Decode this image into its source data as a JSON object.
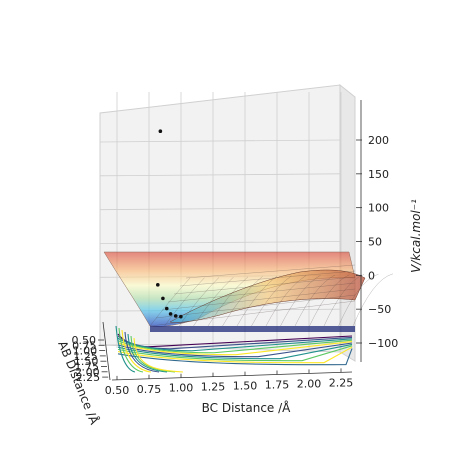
{
  "chart_data": {
    "type": "surface3d",
    "title": "",
    "xlabel": "BC Distance /Å",
    "ylabel": "AB Distance /Å",
    "zlabel": "V/kcal.mol⁻¹",
    "x_ticks": [
      "0.50",
      "0.75",
      "1.00",
      "1.25",
      "1.50",
      "1.75",
      "2.00",
      "2.25"
    ],
    "y_ticks": [
      "0.50",
      "0.75",
      "1.00",
      "1.25",
      "1.50",
      "1.75",
      "2.00",
      "2.25"
    ],
    "z_ticks": [
      "200",
      "150",
      "100",
      "50",
      "0",
      "−50",
      "−100"
    ],
    "x_tick_values": [
      0.5,
      0.75,
      1.0,
      1.25,
      1.5,
      1.75,
      2.0,
      2.25
    ],
    "z_tick_values": [
      200,
      150,
      100,
      50,
      0,
      -50,
      -100
    ],
    "xlim": [
      0.35,
      2.4
    ],
    "zlim": [
      -110,
      230
    ],
    "trajectory_points": [
      {
        "x": 0.62,
        "z": 210
      },
      {
        "x": 0.6,
        "z": -17
      },
      {
        "x": 0.64,
        "z": -37
      },
      {
        "x": 0.67,
        "z": -52
      },
      {
        "x": 0.7,
        "z": -60
      },
      {
        "x": 0.74,
        "z": -63
      },
      {
        "x": 0.78,
        "z": -64
      }
    ],
    "grid": true,
    "colormap": "jet"
  }
}
